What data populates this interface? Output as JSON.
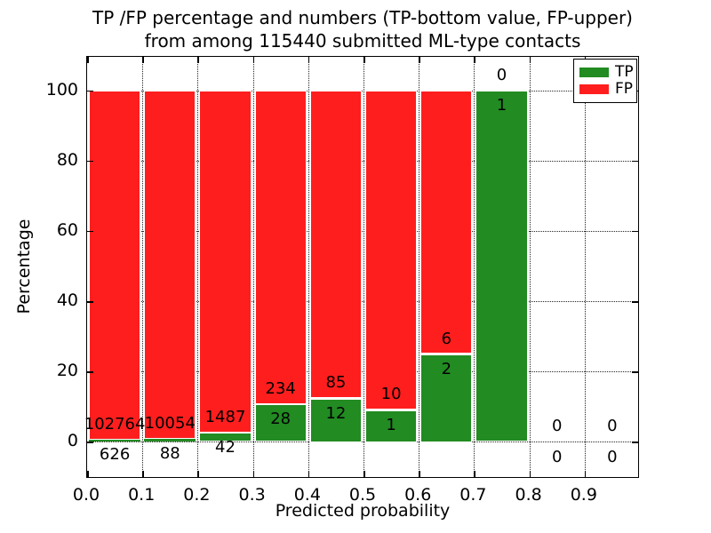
{
  "chart_data": {
    "type": "bar",
    "stacked": true,
    "title_lines": [
      "TP /FP percentage and numbers (TP-bottom value, FP-upper)",
      "from among 115440 submitted ML-type contacts"
    ],
    "title": "TP /FP percentage and numbers (TP-bottom value, FP-upper) from among 115440 submitted ML-type contacts",
    "total_submitted_contacts": 115440,
    "xlabel": "Predicted probability",
    "ylabel": "Percentage",
    "xlim": [
      0.0,
      1.0
    ],
    "ylim": [
      -10.5,
      109.5
    ],
    "xticks": [
      "0.0",
      "0.1",
      "0.2",
      "0.3",
      "0.4",
      "0.5",
      "0.6",
      "0.7",
      "0.8",
      "0.9"
    ],
    "yticks": [
      "0",
      "20",
      "40",
      "60",
      "80",
      "100"
    ],
    "grid": true,
    "grid_style": "dotted",
    "legend_position": "upper right",
    "bin_width": 0.1,
    "categories": [
      "0.0-0.1",
      "0.1-0.2",
      "0.2-0.3",
      "0.3-0.4",
      "0.4-0.5",
      "0.5-0.6",
      "0.6-0.7",
      "0.7-0.8",
      "0.8-0.9",
      "0.9-1.0"
    ],
    "bar_note": "Each bar is a stacked percentage (TP bottom green, FP top red) summing to 100% where counts exist; printed numbers are raw counts, FP above the TP/FP boundary and TP below it",
    "series": [
      {
        "name": "TP",
        "color": "#228b22",
        "counts": [
          626,
          88,
          42,
          28,
          12,
          1,
          2,
          1,
          0,
          0
        ]
      },
      {
        "name": "FP",
        "color": "#ff1e1e",
        "counts": [
          102764,
          10054,
          1487,
          234,
          85,
          10,
          6,
          0,
          0,
          0
        ]
      }
    ],
    "colors": {
      "tp": "#228b22",
      "fp": "#ff1e1e",
      "edge": "#ffffff",
      "axes": "#000000",
      "background": "#ffffff"
    }
  }
}
